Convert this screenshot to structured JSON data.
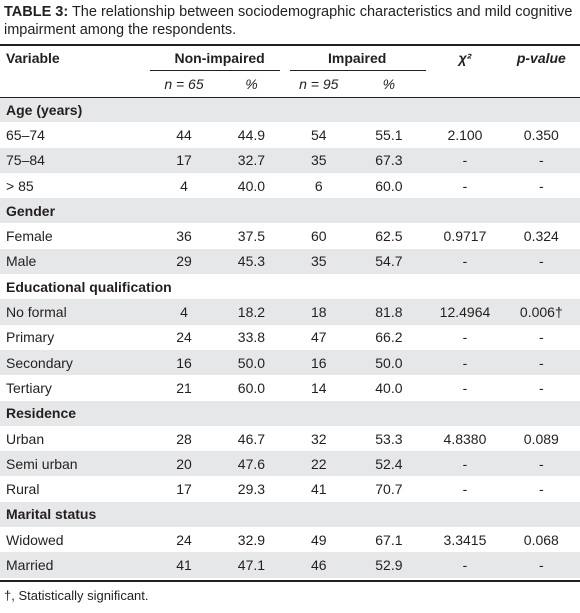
{
  "caption": {
    "label": "TABLE 3:",
    "text": " The relationship between sociodemographic characteristics and mild cognitive impairment among the respondents."
  },
  "header": {
    "variable": "Variable",
    "non_impaired": "Non-impaired",
    "impaired": "Impaired",
    "chi2": "χ²",
    "pvalue": "p-value",
    "n_non": "n = 65",
    "pct_non": "%",
    "n_imp": "n = 95",
    "pct_imp": "%"
  },
  "rows": [
    {
      "type": "section",
      "label": "Age (years)"
    },
    {
      "type": "data",
      "label": "65–74",
      "n1": "44",
      "p1": "44.9",
      "n2": "54",
      "p2": "55.1",
      "chi": "2.100",
      "p": "0.350"
    },
    {
      "type": "data",
      "label": "75–84",
      "n1": "17",
      "p1": "32.7",
      "n2": "35",
      "p2": "67.3",
      "chi": "-",
      "p": "-"
    },
    {
      "type": "data",
      "label": "> 85",
      "n1": "4",
      "p1": "40.0",
      "n2": "6",
      "p2": "60.0",
      "chi": "-",
      "p": "-"
    },
    {
      "type": "section",
      "label": "Gender"
    },
    {
      "type": "data",
      "label": "Female",
      "n1": "36",
      "p1": "37.5",
      "n2": "60",
      "p2": "62.5",
      "chi": "0.9717",
      "p": "0.324"
    },
    {
      "type": "data",
      "label": "Male",
      "n1": "29",
      "p1": "45.3",
      "n2": "35",
      "p2": "54.7",
      "chi": "-",
      "p": "-"
    },
    {
      "type": "section",
      "label": "Educational qualification"
    },
    {
      "type": "data",
      "label": "No formal",
      "n1": "4",
      "p1": "18.2",
      "n2": "18",
      "p2": "81.8",
      "chi": "12.4964",
      "p": "0.006†"
    },
    {
      "type": "data",
      "label": "Primary",
      "n1": "24",
      "p1": "33.8",
      "n2": "47",
      "p2": "66.2",
      "chi": "-",
      "p": "-"
    },
    {
      "type": "data",
      "label": "Secondary",
      "n1": "16",
      "p1": "50.0",
      "n2": "16",
      "p2": "50.0",
      "chi": "-",
      "p": "-"
    },
    {
      "type": "data",
      "label": "Tertiary",
      "n1": "21",
      "p1": "60.0",
      "n2": "14",
      "p2": "40.0",
      "chi": "-",
      "p": "-"
    },
    {
      "type": "section",
      "label": "Residence"
    },
    {
      "type": "data",
      "label": "Urban",
      "n1": "28",
      "p1": "46.7",
      "n2": "32",
      "p2": "53.3",
      "chi": "4.8380",
      "p": "0.089"
    },
    {
      "type": "data",
      "label": "Semi urban",
      "n1": "20",
      "p1": "47.6",
      "n2": "22",
      "p2": "52.4",
      "chi": "-",
      "p": "-"
    },
    {
      "type": "data",
      "label": "Rural",
      "n1": "17",
      "p1": "29.3",
      "n2": "41",
      "p2": "70.7",
      "chi": "-",
      "p": "-"
    },
    {
      "type": "section",
      "label": "Marital status"
    },
    {
      "type": "data",
      "label": "Widowed",
      "n1": "24",
      "p1": "32.9",
      "n2": "49",
      "p2": "67.1",
      "chi": "3.3415",
      "p": "0.068"
    },
    {
      "type": "data",
      "label": "Married",
      "n1": "41",
      "p1": "47.1",
      "n2": "46",
      "p2": "52.9",
      "chi": "-",
      "p": "-"
    }
  ],
  "footnote": "†, Statistically significant.",
  "colors": {
    "shade": "#e6e7e8",
    "text": "#231f20"
  }
}
